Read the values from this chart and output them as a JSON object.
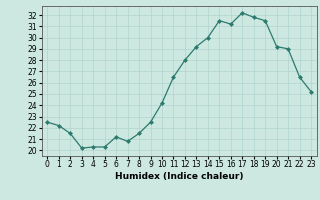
{
  "x": [
    0,
    1,
    2,
    3,
    4,
    5,
    6,
    7,
    8,
    9,
    10,
    11,
    12,
    13,
    14,
    15,
    16,
    17,
    18,
    19,
    20,
    21,
    22,
    23
  ],
  "y": [
    22.5,
    22.2,
    21.5,
    20.2,
    20.3,
    20.3,
    21.2,
    20.8,
    21.5,
    22.5,
    24.2,
    26.5,
    28.0,
    29.2,
    30.0,
    31.5,
    31.2,
    32.2,
    31.8,
    31.5,
    29.2,
    29.0,
    26.5,
    25.2
  ],
  "xlabel": "Humidex (Indice chaleur)",
  "ylim": [
    19.5,
    32.8
  ],
  "xlim": [
    -0.5,
    23.5
  ],
  "yticks": [
    20,
    21,
    22,
    23,
    24,
    25,
    26,
    27,
    28,
    29,
    30,
    31,
    32
  ],
  "xticks": [
    0,
    1,
    2,
    3,
    4,
    5,
    6,
    7,
    8,
    9,
    10,
    11,
    12,
    13,
    14,
    15,
    16,
    17,
    18,
    19,
    20,
    21,
    22,
    23
  ],
  "line_color": "#2d7a6e",
  "bg_color": "#cce8e0",
  "grid_color": "#b0d4cc",
  "label_fontsize": 6.5,
  "tick_fontsize": 5.5
}
